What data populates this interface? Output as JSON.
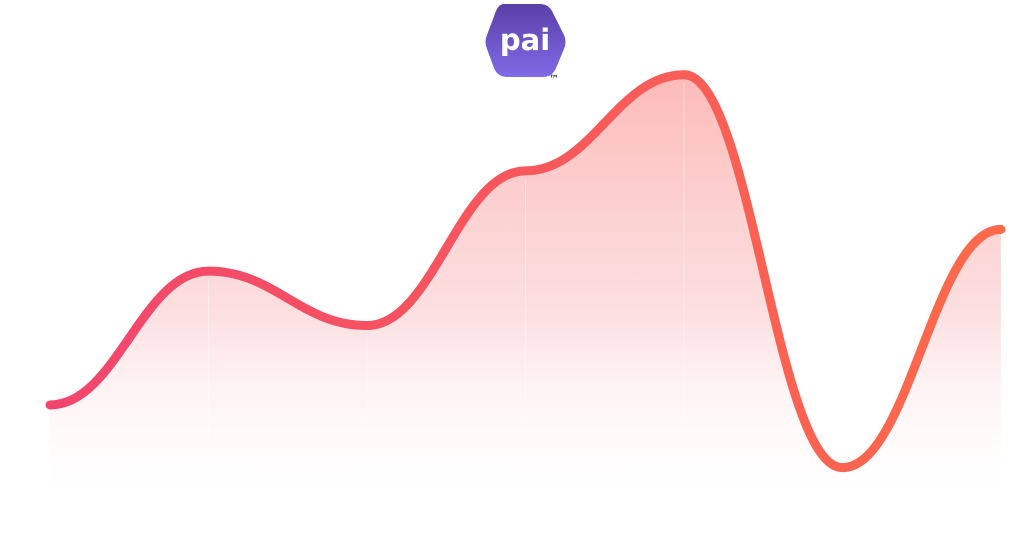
{
  "logo": {
    "text": "pai",
    "trademark": "™",
    "colors": {
      "top": "#5b3fa8",
      "bottom": "#7f6be6",
      "text": "#ffffff"
    }
  },
  "chart_data": {
    "type": "area",
    "title": "",
    "xlabel": "",
    "ylabel": "",
    "x": [
      0,
      1,
      2,
      3,
      4,
      5,
      6
    ],
    "series": [
      {
        "values": [
          17,
          49,
          36,
          73,
          96,
          2,
          59
        ]
      }
    ],
    "xlim": [
      0,
      6
    ],
    "ylim": [
      0,
      100
    ],
    "grid": false,
    "legend": "none",
    "colors": {
      "line_start": "#f2456e",
      "line_end": "#fc6a4a",
      "fill_top": "#fbb3b0",
      "fill_bottom": "#ffffff"
    }
  }
}
